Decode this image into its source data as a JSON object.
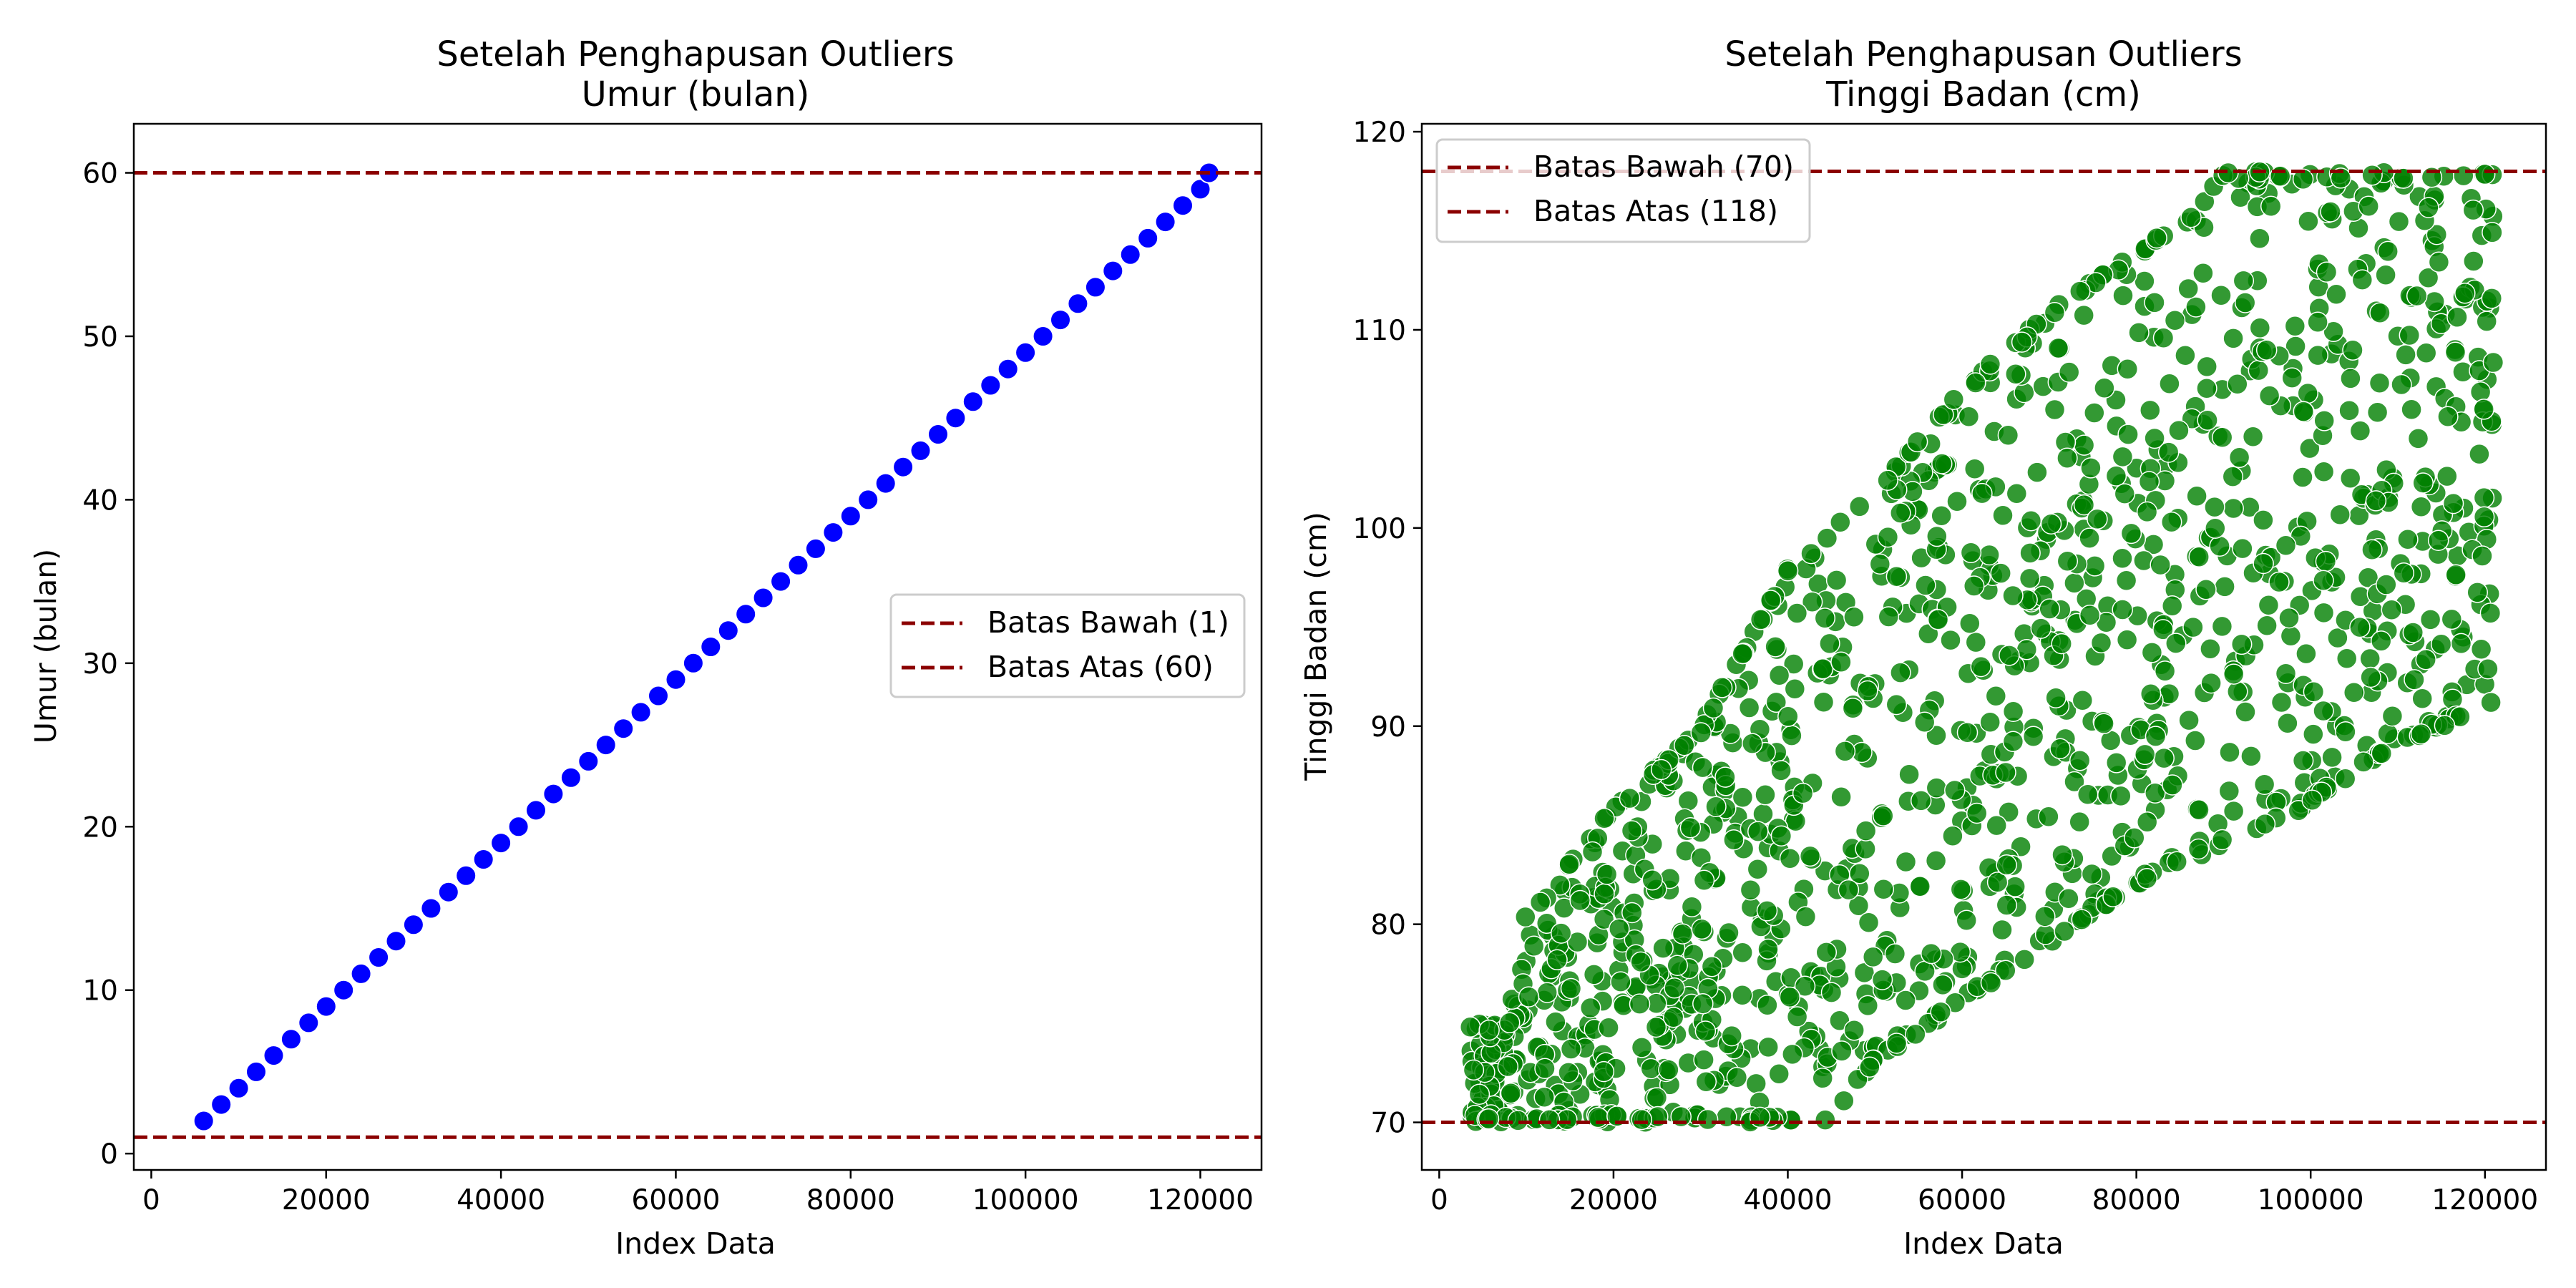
{
  "chart_data": [
    {
      "type": "scatter",
      "title_lines": [
        "Setelah Penghapusan Outliers",
        "Umur (bulan)"
      ],
      "xlabel": "Index Data",
      "ylabel": "Umur (bulan)",
      "xlim": [
        -2000,
        127000
      ],
      "ylim": [
        -1,
        63
      ],
      "xticks": [
        0,
        20000,
        40000,
        60000,
        80000,
        100000,
        120000
      ],
      "yticks": [
        0,
        10,
        20,
        30,
        40,
        50,
        60
      ],
      "legend_position": "center-right",
      "marker_color": "#0000ff",
      "series": [
        {
          "x": [
            6000,
            8000,
            10000,
            12000,
            14000,
            16000,
            18000,
            20000,
            22000,
            24000,
            26000,
            28000,
            30000,
            32000,
            34000,
            36000,
            38000,
            40000,
            42000,
            44000,
            46000,
            48000,
            50000,
            52000,
            54000,
            56000,
            58000,
            60000,
            62000,
            64000,
            66000,
            68000,
            70000,
            72000,
            74000,
            76000,
            78000,
            80000,
            82000,
            84000,
            86000,
            88000,
            90000,
            92000,
            94000,
            96000,
            98000,
            100000,
            102000,
            104000,
            106000,
            108000,
            110000,
            112000,
            114000,
            116000,
            118000,
            120000,
            121000
          ],
          "y": [
            2,
            3,
            4,
            5,
            6,
            7,
            8,
            9,
            10,
            11,
            12,
            13,
            14,
            15,
            16,
            17,
            18,
            19,
            20,
            21,
            22,
            23,
            24,
            25,
            26,
            27,
            28,
            29,
            30,
            31,
            32,
            33,
            34,
            35,
            36,
            37,
            38,
            39,
            40,
            41,
            42,
            43,
            44,
            45,
            46,
            47,
            48,
            49,
            50,
            51,
            52,
            53,
            54,
            55,
            56,
            57,
            58,
            59,
            60
          ]
        }
      ],
      "reference_lines": [
        {
          "name": "Batas Bawah (1)",
          "y": 1,
          "color": "#8b0000"
        },
        {
          "name": "Batas Atas (60)",
          "y": 60,
          "color": "#8b0000"
        }
      ]
    },
    {
      "type": "scatter",
      "title_lines": [
        "Setelah Penghapusan Outliers",
        "Tinggi Badan (cm)"
      ],
      "xlabel": "Index Data",
      "ylabel": "Tinggi Badan (cm)",
      "xlim": [
        -2000,
        127000
      ],
      "ylim": [
        67.6,
        120.4
      ],
      "xticks": [
        0,
        20000,
        40000,
        60000,
        80000,
        100000,
        120000
      ],
      "yticks": [
        70,
        80,
        90,
        100,
        110,
        120
      ],
      "legend_position": "top-left",
      "marker_color": "#008000",
      "series": [
        {
          "point_count": 1200,
          "x_range": [
            3500,
            121000
          ],
          "lower_envelope": [
            [
              3500,
              70
            ],
            [
              45000,
              70
            ],
            [
              50000,
              73
            ],
            [
              60000,
              76
            ],
            [
              70000,
              79
            ],
            [
              80000,
              82
            ],
            [
              90000,
              84
            ],
            [
              100000,
              86
            ],
            [
              110000,
              89
            ],
            [
              121000,
              91
            ]
          ],
          "upper_envelope": [
            [
              3500,
              75
            ],
            [
              8000,
              75
            ],
            [
              9000,
              80
            ],
            [
              20000,
              86
            ],
            [
              30000,
              90
            ],
            [
              40000,
              98
            ],
            [
              50000,
              102
            ],
            [
              60000,
              107
            ],
            [
              70000,
              111
            ],
            [
              80000,
              114
            ],
            [
              87000,
              116
            ],
            [
              90000,
              118
            ],
            [
              121000,
              118
            ]
          ]
        }
      ],
      "reference_lines": [
        {
          "name": "Batas Bawah (70)",
          "y": 70,
          "color": "#8b0000"
        },
        {
          "name": "Batas Atas (118)",
          "y": 118,
          "color": "#8b0000"
        }
      ]
    }
  ]
}
